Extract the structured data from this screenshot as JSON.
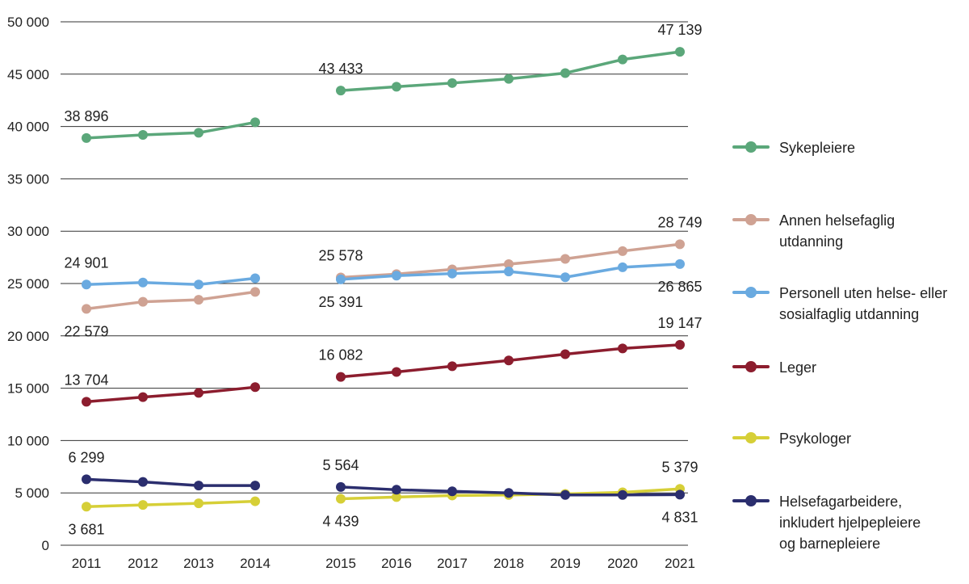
{
  "chart_data": {
    "type": "line",
    "title": "",
    "xlabel": "",
    "ylabel": "",
    "ylim": [
      0,
      50000
    ],
    "yticks": [
      0,
      5000,
      10000,
      15000,
      20000,
      25000,
      30000,
      35000,
      40000,
      45000,
      50000
    ],
    "ytick_labels": [
      "0",
      "5 000",
      "10 000",
      "15 000",
      "20 000",
      "25 000",
      "30 000",
      "35 000",
      "40 000",
      "45 000",
      "50 000"
    ],
    "categories": [
      "2011",
      "2012",
      "2013",
      "2014",
      "2015",
      "2016",
      "2017",
      "2018",
      "2019",
      "2020",
      "2021"
    ],
    "segment_break_after": "2014",
    "grid": "horizontal",
    "legend_position": "right",
    "series": [
      {
        "name": "Sykepleiere",
        "color": "#5ba77a",
        "values": [
          38896,
          39200,
          39400,
          40400,
          43433,
          43800,
          44150,
          44550,
          45100,
          46400,
          47139
        ]
      },
      {
        "name": "Annen helsefaglig utdanning",
        "color": "#cfa293",
        "values": [
          22579,
          23250,
          23450,
          24200,
          25578,
          25900,
          26350,
          26850,
          27350,
          28100,
          28749
        ]
      },
      {
        "name": "Personell uten helse- eller sosialfaglig utdanning",
        "color": "#6aaae0",
        "values": [
          24901,
          25100,
          24900,
          25500,
          25391,
          25750,
          25950,
          26150,
          25600,
          26550,
          26865
        ]
      },
      {
        "name": "Leger",
        "color": "#8c1d2e",
        "values": [
          13704,
          14150,
          14550,
          15100,
          16082,
          16550,
          17100,
          17650,
          18250,
          18800,
          19147
        ]
      },
      {
        "name": "Psykologer",
        "color": "#d6cf37",
        "values": [
          3681,
          3850,
          4000,
          4200,
          4439,
          4600,
          4750,
          4800,
          4900,
          5050,
          5379
        ]
      },
      {
        "name": "Helsefagarbeidere, inkludert hjelpepleiere og barnepleiere",
        "color": "#2b2e6e",
        "values": [
          6299,
          6050,
          5700,
          5700,
          5564,
          5300,
          5150,
          5000,
          4800,
          4800,
          4831
        ]
      }
    ],
    "annotations": [
      {
        "series": 0,
        "index": 0,
        "text": "38 896",
        "pos": "above"
      },
      {
        "series": 0,
        "index": 4,
        "text": "43 433",
        "pos": "above"
      },
      {
        "series": 0,
        "index": 10,
        "text": "47 139",
        "pos": "above"
      },
      {
        "series": 1,
        "index": 0,
        "text": "22 579",
        "pos": "below"
      },
      {
        "series": 1,
        "index": 4,
        "text": "25 578",
        "pos": "above"
      },
      {
        "series": 1,
        "index": 10,
        "text": "28 749",
        "pos": "above"
      },
      {
        "series": 2,
        "index": 0,
        "text": "24 901",
        "pos": "above"
      },
      {
        "series": 2,
        "index": 4,
        "text": "25 391",
        "pos": "below"
      },
      {
        "series": 2,
        "index": 10,
        "text": "26 865",
        "pos": "below"
      },
      {
        "series": 3,
        "index": 0,
        "text": "13 704",
        "pos": "above"
      },
      {
        "series": 3,
        "index": 4,
        "text": "16 082",
        "pos": "above"
      },
      {
        "series": 3,
        "index": 10,
        "text": "19 147",
        "pos": "above"
      },
      {
        "series": 4,
        "index": 0,
        "text": "3 681",
        "pos": "below"
      },
      {
        "series": 4,
        "index": 4,
        "text": "4 439",
        "pos": "below"
      },
      {
        "series": 4,
        "index": 10,
        "text": "5 379",
        "pos": "above"
      },
      {
        "series": 5,
        "index": 0,
        "text": "6 299",
        "pos": "above"
      },
      {
        "series": 5,
        "index": 4,
        "text": "5 564",
        "pos": "above"
      },
      {
        "series": 5,
        "index": 10,
        "text": "4 831",
        "pos": "below"
      }
    ]
  },
  "legend": {
    "items": [
      {
        "label": "Sykepleiere"
      },
      {
        "label": "Annen helsefaglig utdanning"
      },
      {
        "label": "Personell uten helse- eller sosialfaglig utdanning"
      },
      {
        "label": "Leger"
      },
      {
        "label": "Psykologer"
      },
      {
        "label": "Helsefagarbeidere, inkludert hjelpepleiere og barnepleiere"
      }
    ]
  }
}
